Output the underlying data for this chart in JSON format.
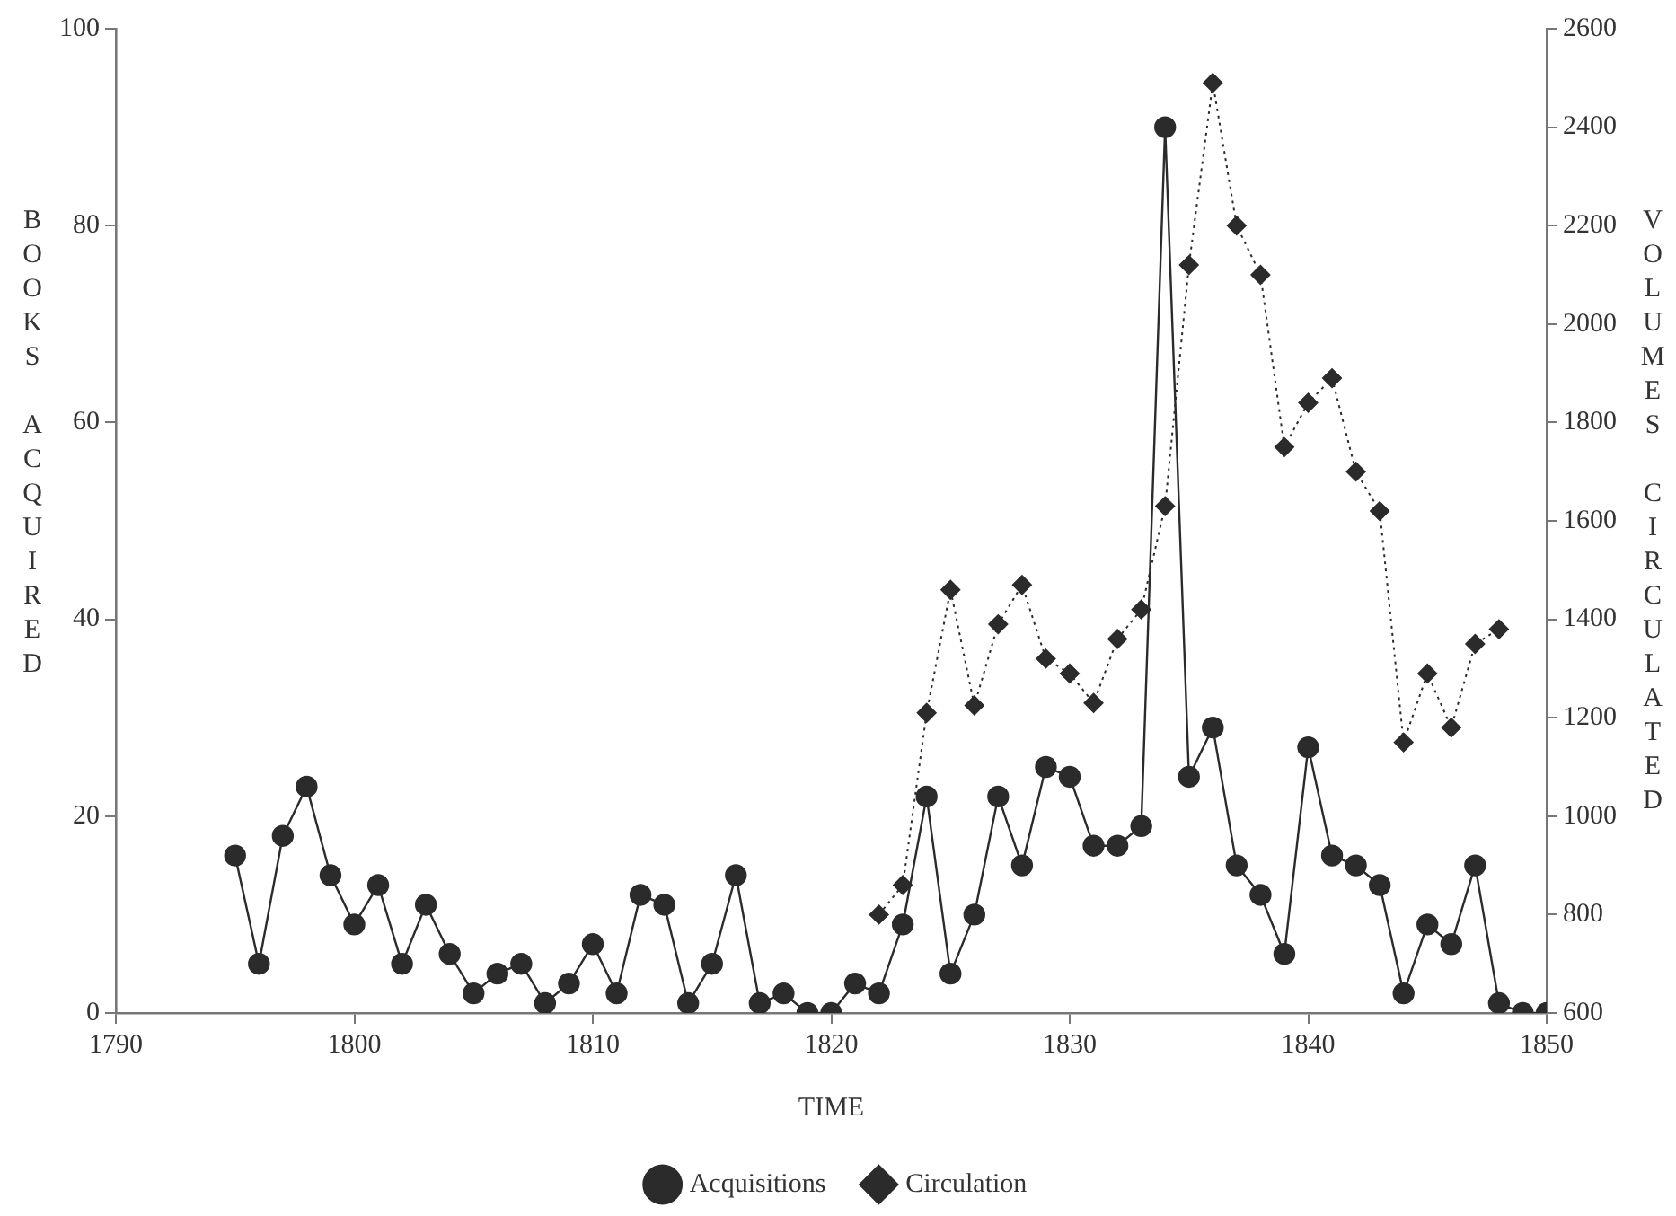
{
  "chart_data": {
    "type": "line",
    "xlabel": "TIME",
    "ylabel": "BOOKS ACQUIRED",
    "y2label": "VOLUMES CIRCULATED",
    "xlim": [
      1790,
      1850
    ],
    "xticks": [
      1790,
      1800,
      1810,
      1820,
      1830,
      1840,
      1850
    ],
    "ylim": [
      0,
      100
    ],
    "yticks": [
      0,
      20,
      40,
      60,
      80,
      100
    ],
    "y2lim": [
      600,
      2600
    ],
    "y2ticks": [
      600,
      800,
      1000,
      1200,
      1400,
      1600,
      1800,
      2000,
      2200,
      2400,
      2600
    ],
    "grid": false,
    "legend": "bottom",
    "series": [
      {
        "name": "Acquisitions",
        "color": "#2b2b2b",
        "marker": "circle",
        "line_style": "solid",
        "x": [
          1795,
          1796,
          1797,
          1798,
          1799,
          1800,
          1801,
          1802,
          1803,
          1804,
          1805,
          1806,
          1807,
          1808,
          1809,
          1810,
          1811,
          1812,
          1813,
          1814,
          1815,
          1816,
          1817,
          1818,
          1819,
          1820,
          1821,
          1822,
          1823,
          1824,
          1825,
          1826,
          1827,
          1828,
          1829,
          1830,
          1831,
          1832,
          1833,
          1834,
          1835,
          1836,
          1837,
          1838,
          1839,
          1840,
          1841,
          1842,
          1843,
          1844,
          1845,
          1846,
          1847,
          1848,
          1849,
          1850
        ],
        "values": [
          16,
          5,
          18,
          23,
          14,
          9,
          13,
          5,
          11,
          6,
          2,
          4,
          5,
          1,
          3,
          7,
          2,
          12,
          11,
          1,
          5,
          14,
          1,
          2,
          0,
          0,
          3,
          2,
          9,
          22,
          4,
          10,
          22,
          15,
          25,
          24,
          17,
          17,
          19,
          90,
          24,
          29,
          15,
          12,
          6,
          27,
          16,
          15,
          13,
          2,
          9,
          7,
          15,
          1,
          0,
          0
        ]
      },
      {
        "name": "Circulation",
        "color": "#2b2b2b",
        "marker": "diamond",
        "line_style": "dotted",
        "axis": "y2",
        "x": [
          1822,
          1823,
          1824,
          1825,
          1826,
          1827,
          1828,
          1829,
          1830,
          1831,
          1832,
          1833,
          1834,
          1835,
          1836,
          1837,
          1838,
          1839,
          1840,
          1841,
          1842,
          1843,
          1844,
          1845,
          1846,
          1847,
          1848
        ],
        "values": [
          800,
          860,
          1210,
          1460,
          1225,
          1390,
          1470,
          1320,
          1290,
          1230,
          1360,
          1420,
          1630,
          2120,
          2490,
          2200,
          2100,
          1750,
          1840,
          1890,
          1700,
          1620,
          1150,
          1290,
          1180,
          1350,
          1380
        ]
      }
    ]
  }
}
